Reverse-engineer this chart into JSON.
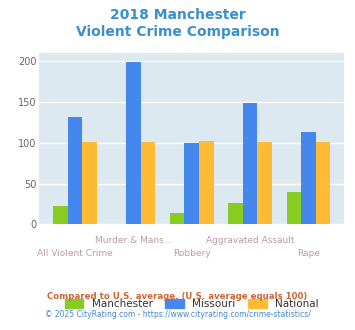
{
  "title_line1": "2018 Manchester",
  "title_line2": "Violent Crime Comparison",
  "title_color": "#3b8fcc",
  "categories": [
    "All Violent Crime",
    "Murder & Mans...",
    "Robbery",
    "Aggravated Assault",
    "Rape"
  ],
  "manchester": [
    23,
    0,
    14,
    26,
    40
  ],
  "missouri": [
    132,
    199,
    100,
    148,
    113
  ],
  "national": [
    101,
    101,
    102,
    101,
    101
  ],
  "manchester_color": "#88cc22",
  "missouri_color": "#4488ee",
  "national_color": "#ffbb33",
  "ylim": [
    0,
    210
  ],
  "yticks": [
    0,
    50,
    100,
    150,
    200
  ],
  "plot_bg": "#dce9f0",
  "grid_color": "#ffffff",
  "label_color_top": "#bb99aa",
  "label_color_bot": "#bb99aa",
  "footnote1": "Compared to U.S. average. (U.S. average equals 100)",
  "footnote2": "© 2025 CityRating.com - https://www.cityrating.com/crime-statistics/",
  "footnote1_color": "#cc6633",
  "footnote2_color": "#4488cc",
  "legend_labels": [
    "Manchester",
    "Missouri",
    "National"
  ],
  "legend_text_color": "#333333",
  "bar_width": 0.25
}
